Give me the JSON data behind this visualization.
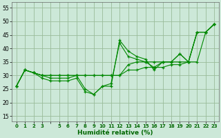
{
  "xlabel": "Humidité relative (%)",
  "background_color": "#cce8d8",
  "grid_color": "#99bb99",
  "line_color": "#008800",
  "xlim": [
    -0.5,
    23.5
  ],
  "ylim": [
    13,
    57
  ],
  "yticks": [
    15,
    20,
    25,
    30,
    35,
    40,
    45,
    50,
    55
  ],
  "xtick_positions": [
    0,
    1,
    2,
    3,
    4,
    5,
    6,
    7,
    8,
    9,
    10,
    11,
    12,
    13,
    14,
    15,
    16,
    17,
    18,
    19,
    20,
    21,
    22,
    23
  ],
  "xtick_labels": [
    "0",
    "1",
    "2",
    "3",
    "",
    "5",
    "6",
    "7",
    "8",
    "9",
    "10",
    "11",
    "12",
    "13",
    "14",
    "15",
    "16",
    "17",
    "18",
    "19",
    "20",
    "21",
    "22",
    "23"
  ],
  "series": [
    [
      26,
      32,
      31,
      29,
      28,
      28,
      28,
      29,
      24,
      23,
      26,
      26,
      43,
      39,
      37,
      36,
      32,
      35,
      35,
      38,
      35,
      46,
      46,
      49
    ],
    [
      26,
      32,
      31,
      30,
      30,
      30,
      30,
      30,
      30,
      30,
      30,
      30,
      30,
      32,
      32,
      33,
      33,
      33,
      34,
      34,
      35,
      35,
      46,
      49
    ],
    [
      26,
      32,
      31,
      30,
      30,
      30,
      30,
      30,
      30,
      30,
      30,
      30,
      30,
      34,
      35,
      35,
      35,
      35,
      35,
      35,
      35,
      46,
      46,
      49
    ],
    [
      26,
      32,
      31,
      30,
      29,
      29,
      29,
      30,
      25,
      23,
      26,
      27,
      42,
      37,
      36,
      35,
      33,
      35,
      35,
      38,
      35,
      46,
      46,
      49
    ]
  ]
}
